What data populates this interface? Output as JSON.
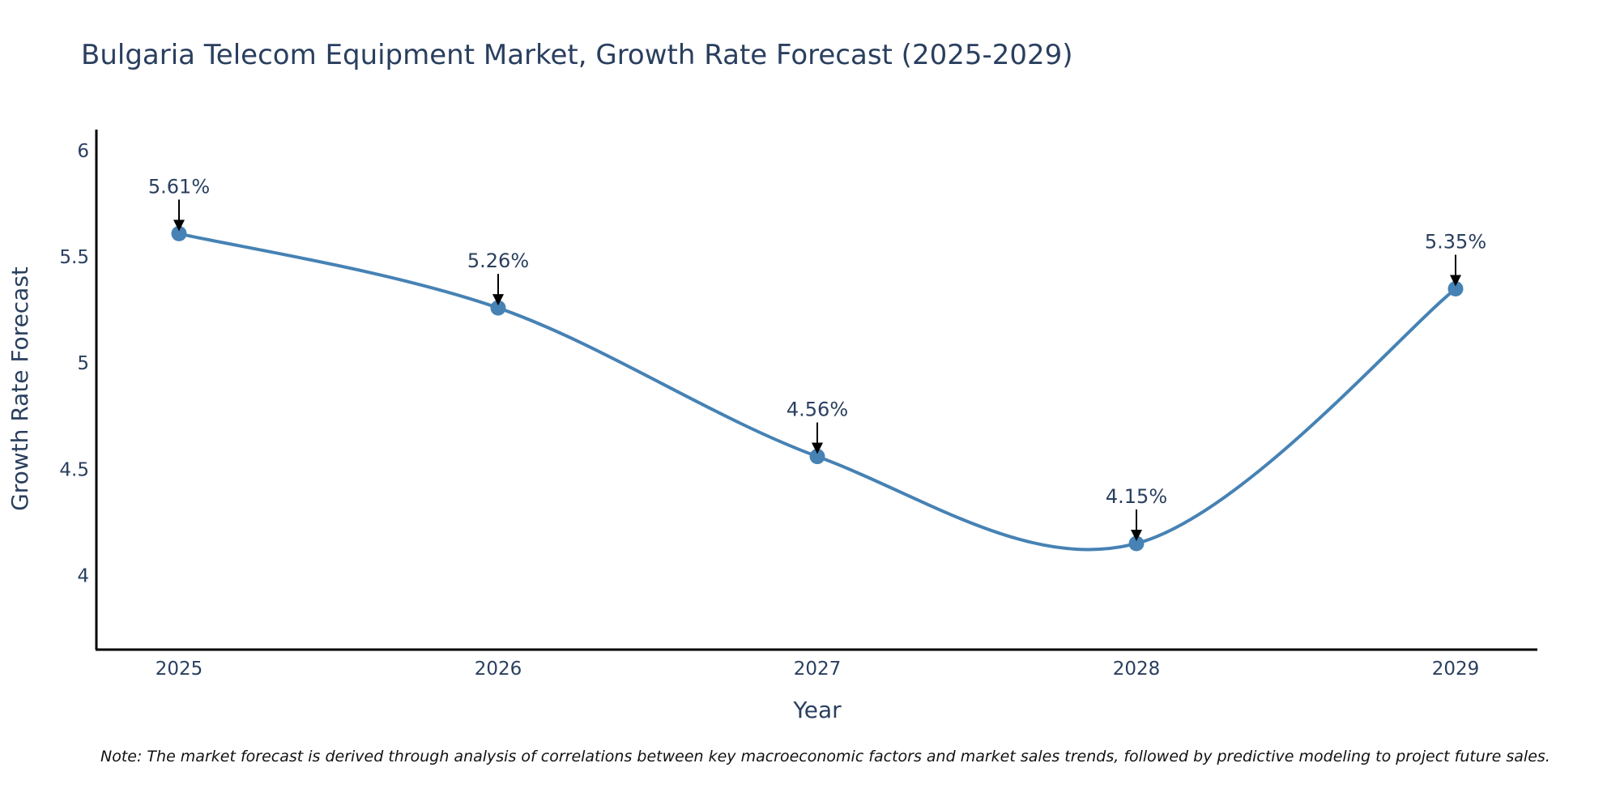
{
  "chart_data": {
    "type": "line",
    "title": "Bulgaria Telecom Equipment Market, Growth Rate Forecast (2025-2029)",
    "xlabel": "Year",
    "ylabel": "Growth Rate Forecast",
    "categories": [
      "2025",
      "2026",
      "2027",
      "2028",
      "2029"
    ],
    "values": [
      5.61,
      5.26,
      4.56,
      4.15,
      5.35
    ],
    "data_labels": [
      "5.61%",
      "5.26%",
      "4.56%",
      "4.15%",
      "5.35%"
    ],
    "yticks": [
      4,
      4.5,
      5,
      5.5,
      6
    ],
    "ytick_labels": [
      "4",
      "4.5",
      "5",
      "5.5",
      "6"
    ],
    "ylim": [
      3.65,
      6.1
    ],
    "grid": false,
    "line_shape": "spline",
    "line_color": "#4682b4",
    "marker_color": "#4682b4",
    "note": "Note: The market forecast is derived through analysis of correlations between key macroeconomic factors and market sales trends, followed by predictive modeling to project future sales."
  }
}
